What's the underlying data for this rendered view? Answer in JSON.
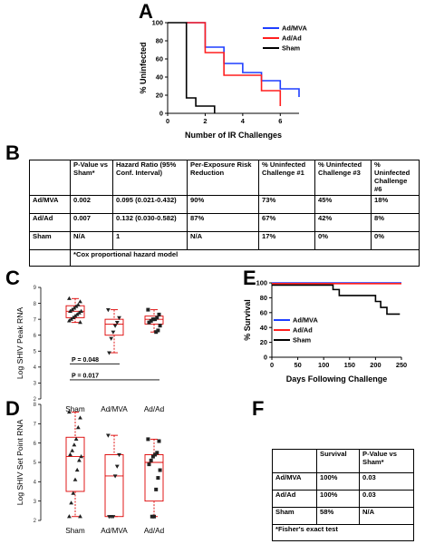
{
  "panels": {
    "A": "A",
    "B": "B",
    "C": "C",
    "D": "D",
    "E": "E",
    "F": "F"
  },
  "chart_data": [
    {
      "id": "A",
      "type": "line",
      "step": true,
      "xlabel": "Number of IR Challenges",
      "ylabel": "% Uninfected",
      "xlim": [
        0,
        7
      ],
      "ylim": [
        0,
        100
      ],
      "xticks": [
        0,
        2,
        4,
        6
      ],
      "yticks": [
        0,
        20,
        40,
        60,
        80,
        100
      ],
      "legend_position": "top-right",
      "series": [
        {
          "name": "Ad/MVA",
          "color": "#1f3fff",
          "x": [
            1,
            2,
            3,
            4,
            5,
            6,
            7
          ],
          "y": [
            100,
            73,
            55,
            45,
            36,
            27,
            18
          ]
        },
        {
          "name": "Ad/Ad",
          "color": "#ff1f1f",
          "x": [
            1,
            2,
            3,
            4,
            5,
            6
          ],
          "y": [
            100,
            67,
            42,
            42,
            25,
            8
          ]
        },
        {
          "name": "Sham",
          "color": "#000000",
          "x": [
            0,
            1,
            1.5,
            2,
            2.5
          ],
          "y": [
            100,
            17,
            8,
            8,
            0
          ]
        }
      ]
    },
    {
      "id": "C",
      "type": "scatter",
      "ylabel": "Log SHIV Peak RNA",
      "ylim": [
        2,
        9
      ],
      "yticks": [
        2,
        3,
        4,
        5,
        6,
        7,
        8,
        9
      ],
      "categories": [
        "Sham",
        "Ad/MVA",
        "Ad/Ad"
      ],
      "box": [
        {
          "min": 6.8,
          "q1": 7.1,
          "median": 7.5,
          "q3": 7.85,
          "max": 8.3
        },
        {
          "min": 4.9,
          "q1": 6.0,
          "median": 6.7,
          "q3": 7.0,
          "max": 7.6
        },
        {
          "min": 6.2,
          "q1": 6.7,
          "median": 7.0,
          "q3": 7.2,
          "max": 7.6
        }
      ],
      "points": [
        [
          8.3,
          8.1,
          7.9,
          7.8,
          7.7,
          7.6,
          7.5,
          7.5,
          7.4,
          7.3,
          7.2,
          7.1,
          7.0,
          6.9,
          6.8
        ],
        [
          7.6,
          7.1,
          6.8,
          6.6,
          6.2,
          5.8,
          4.9
        ],
        [
          7.6,
          7.3,
          7.1,
          7.0,
          7.0,
          6.9,
          6.8,
          6.6,
          6.3,
          6.2
        ]
      ],
      "annotations": [
        {
          "text": "P = 0.048",
          "from": 0,
          "to": 1,
          "y": 4.2
        },
        {
          "text": "P = 0.017",
          "from": 0,
          "to": 2,
          "y": 3.2
        }
      ]
    },
    {
      "id": "D",
      "type": "scatter",
      "ylabel": "Log SHIV Set Point RNA",
      "ylim": [
        2,
        8
      ],
      "yticks": [
        2,
        3,
        4,
        5,
        6,
        7,
        8
      ],
      "categories": [
        "Sham",
        "Ad/MVA",
        "Ad/Ad"
      ],
      "box": [
        {
          "min": 2.2,
          "q1": 3.5,
          "median": 5.3,
          "q3": 6.3,
          "max": 7.6
        },
        {
          "min": 2.2,
          "q1": 2.2,
          "median": 4.3,
          "q3": 5.4,
          "max": 6.4
        },
        {
          "min": 2.2,
          "q1": 3.0,
          "median": 5.0,
          "q3": 5.4,
          "max": 6.2
        }
      ],
      "points": [
        [
          7.6,
          7.3,
          6.8,
          6.2,
          5.9,
          5.6,
          5.4,
          5.3,
          5.1,
          4.6,
          4.1,
          3.4,
          2.9,
          2.2,
          2.2
        ],
        [
          6.4,
          5.4,
          4.8,
          4.3,
          2.2,
          2.2,
          2.2
        ],
        [
          6.2,
          6.1,
          5.5,
          5.4,
          5.3,
          5.1,
          4.9,
          4.6,
          4.2,
          3.6,
          2.2,
          2.2
        ]
      ]
    },
    {
      "id": "E",
      "type": "line",
      "step": true,
      "xlabel": "Days Following Challenge",
      "ylabel": "% Survival",
      "xlim": [
        0,
        250
      ],
      "ylim": [
        0,
        100
      ],
      "xticks": [
        0,
        50,
        100,
        150,
        200,
        250
      ],
      "yticks": [
        0,
        20,
        40,
        60,
        80,
        100
      ],
      "legend_position": "bottom-left",
      "series": [
        {
          "name": "Ad/MVA",
          "color": "#1f3fff",
          "x": [
            0,
            250
          ],
          "y": [
            100,
            100
          ]
        },
        {
          "name": "Ad/Ad",
          "color": "#ff1f1f",
          "x": [
            0,
            250
          ],
          "y": [
            99,
            99
          ]
        },
        {
          "name": "Sham",
          "color": "#000000",
          "x": [
            0,
            118,
            130,
            200,
            210,
            222,
            232,
            247
          ],
          "y": [
            97,
            91,
            83,
            75,
            67,
            58,
            58,
            58
          ]
        }
      ]
    }
  ],
  "table_b": {
    "headers": [
      "",
      "P-Value vs Sham*",
      "Hazard Ratio (95% Conf. Interval)",
      "Per-Exposure Risk Reduction",
      "% Uninfected Challenge #1",
      "% Uninfected Challenge #3",
      "% Uninfected Challenge #6"
    ],
    "rows": [
      [
        "Ad/MVA",
        "0.002",
        "0.095 (0.021-0.432)",
        "90%",
        "73%",
        "45%",
        "18%"
      ],
      [
        "Ad/Ad",
        "0.007",
        "0.132 (0.030-0.582)",
        "87%",
        "67%",
        "42%",
        "8%"
      ],
      [
        "Sham",
        "N/A",
        "1",
        "N/A",
        "17%",
        "0%",
        "0%"
      ]
    ],
    "footnote": "*Cox proportional hazard model"
  },
  "table_f": {
    "headers": [
      "",
      "Survival",
      "P-Value vs Sham*"
    ],
    "rows": [
      [
        "Ad/MVA",
        "100%",
        "0.03"
      ],
      [
        "Ad/Ad",
        "100%",
        "0.03"
      ],
      [
        "Sham",
        "58%",
        "N/A"
      ]
    ],
    "footnote": "*Fisher's exact test"
  }
}
